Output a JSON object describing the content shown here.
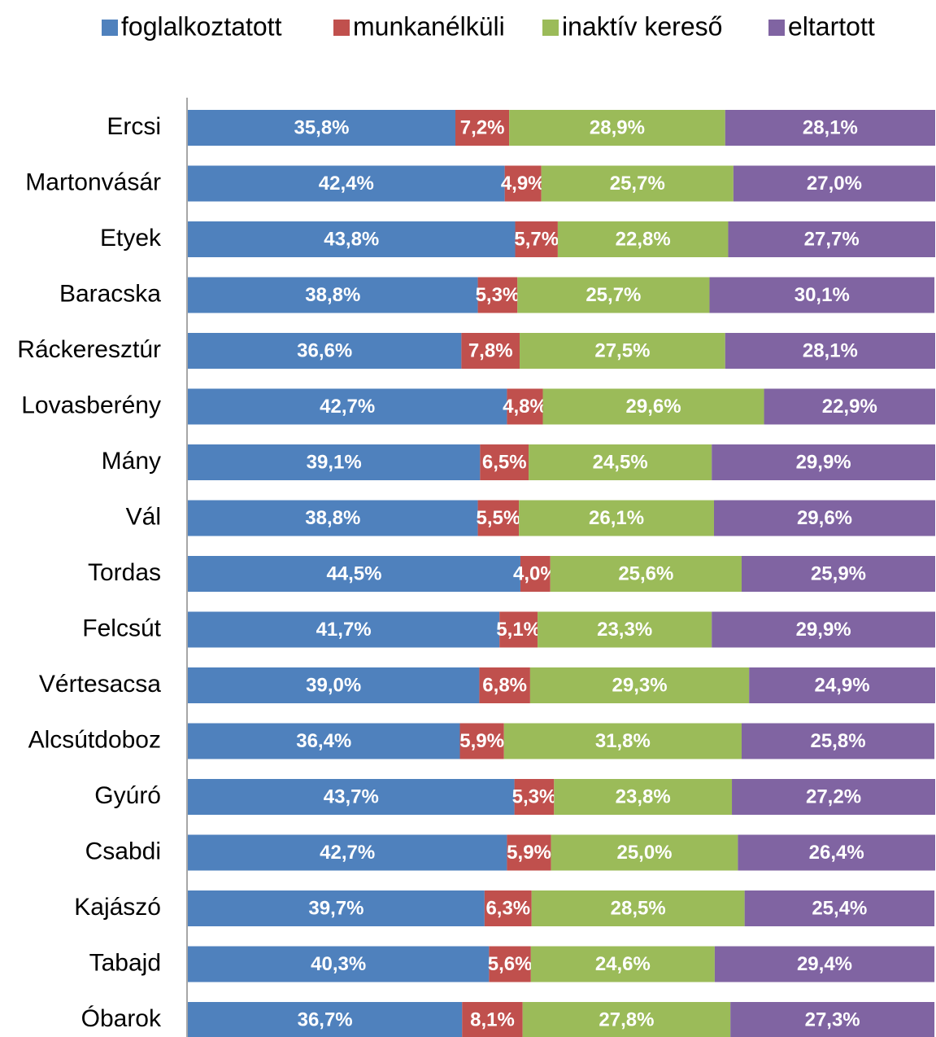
{
  "chart_data": {
    "type": "stacked_bar_horizontal",
    "categories": [
      "Ercsi",
      "Martonvásár",
      "Etyek",
      "Baracska",
      "Ráckeresztúr",
      "Lovasberény",
      "Mány",
      "Vál",
      "Tordas",
      "Felcsút",
      "Vértesacsa",
      "Alcsútdoboz",
      "Gyúró",
      "Csabdi",
      "Kajászó",
      "Tabajd",
      "Óbarok"
    ],
    "xlim": [
      0,
      100
    ],
    "legend": "top",
    "series": [
      {
        "name": "foglalkoztatott",
        "color": "#4f81bd",
        "values": [
          35.8,
          42.4,
          43.8,
          38.8,
          36.6,
          42.7,
          39.1,
          38.8,
          44.5,
          41.7,
          39.0,
          36.4,
          43.7,
          42.7,
          39.7,
          40.3,
          36.7
        ],
        "value_labels": [
          "35,8%",
          "42,4%",
          "43,8%",
          "38,8%",
          "36,6%",
          "42,7%",
          "39,1%",
          "38,8%",
          "44,5%",
          "41,7%",
          "39,0%",
          "36,4%",
          "43,7%",
          "42,7%",
          "39,7%",
          "40,3%",
          "36,7%"
        ]
      },
      {
        "name": "munkanélküli",
        "color": "#c0504d",
        "values": [
          7.2,
          4.9,
          5.7,
          5.3,
          7.8,
          4.8,
          6.5,
          5.5,
          4.0,
          5.1,
          6.8,
          5.9,
          5.3,
          5.9,
          6.3,
          5.6,
          8.1
        ],
        "value_labels": [
          "7,2%",
          "4,9%",
          "5,7%",
          "5,3%",
          "7,8%",
          "4,8%",
          "6,5%",
          "5,5%",
          "4,0%",
          "5,1%",
          "6,8%",
          "5,9%",
          "5,3%",
          "5,9%",
          "6,3%",
          "5,6%",
          "8,1%"
        ]
      },
      {
        "name": "inaktív kereső",
        "color": "#9bbb59",
        "values": [
          28.9,
          25.7,
          22.8,
          25.7,
          27.5,
          29.6,
          24.5,
          26.1,
          25.6,
          23.3,
          29.3,
          31.8,
          23.8,
          25.0,
          28.5,
          24.6,
          27.8
        ],
        "value_labels": [
          "28,9%",
          "25,7%",
          "22,8%",
          "25,7%",
          "27,5%",
          "29,6%",
          "24,5%",
          "26,1%",
          "25,6%",
          "23,3%",
          "29,3%",
          "31,8%",
          "23,8%",
          "25,0%",
          "28,5%",
          "24,6%",
          "27,8%"
        ]
      },
      {
        "name": "eltartott",
        "color": "#8064a2",
        "values": [
          28.1,
          27.0,
          27.7,
          30.1,
          28.1,
          22.9,
          29.9,
          29.6,
          25.9,
          29.9,
          24.9,
          25.8,
          27.2,
          26.4,
          25.4,
          29.4,
          27.3
        ],
        "value_labels": [
          "28,1%",
          "27,0%",
          "27,7%",
          "30,1%",
          "28,1%",
          "22,9%",
          "29,9%",
          "29,6%",
          "25,9%",
          "29,9%",
          "24,9%",
          "25,8%",
          "27,2%",
          "26,4%",
          "25,4%",
          "29,4%",
          "27,3%"
        ]
      }
    ]
  }
}
